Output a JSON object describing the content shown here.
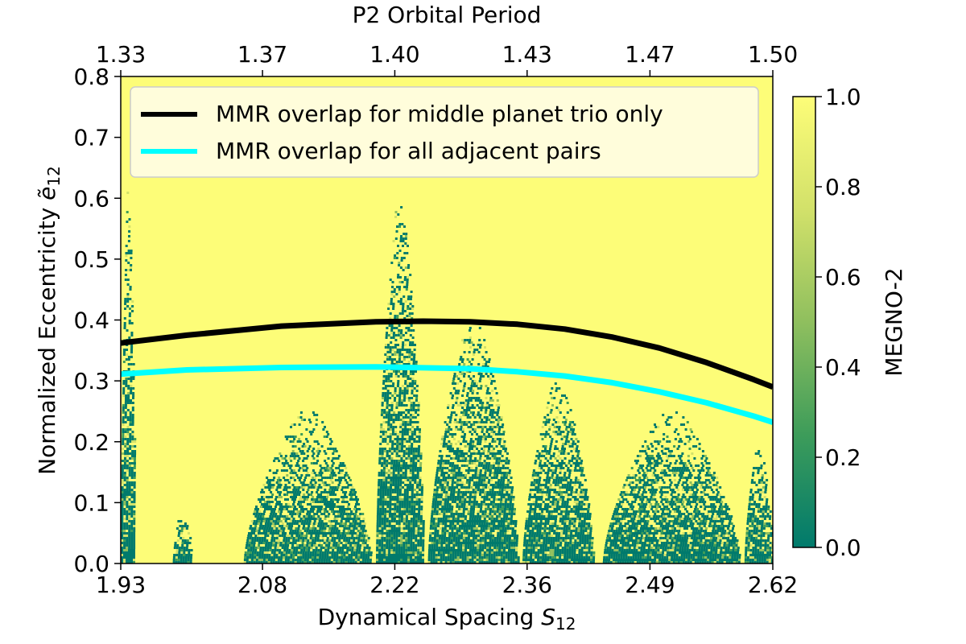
{
  "chart_data": {
    "type": "heatmap",
    "title": "",
    "xlabel": "Dynamical Spacing",
    "xlabel_symbol": "S",
    "xlabel_subscript": "12",
    "ylabel": "Normalized Eccentricity",
    "ylabel_symbol": "ẽ",
    "ylabel_subscript": "12",
    "top_xlabel": "P2 Orbital Period",
    "colorbar_label": "MEGNO-2",
    "xlim": [
      1.93,
      2.62
    ],
    "ylim": [
      0.0,
      0.8
    ],
    "x_ticks": [
      1.93,
      2.08,
      2.22,
      2.36,
      2.49,
      2.62
    ],
    "x_tick_labels": [
      "1.93",
      "2.08",
      "2.22",
      "2.36",
      "2.49",
      "2.62"
    ],
    "y_ticks": [
      0.0,
      0.1,
      0.2,
      0.3,
      0.4,
      0.5,
      0.6,
      0.7,
      0.8
    ],
    "y_tick_labels": [
      "0.0",
      "0.1",
      "0.2",
      "0.3",
      "0.4",
      "0.5",
      "0.6",
      "0.7",
      "0.8"
    ],
    "top_x_ticks": [
      1.93,
      2.08,
      2.22,
      2.36,
      2.49,
      2.62
    ],
    "top_x_tick_labels": [
      "1.33",
      "1.37",
      "1.40",
      "1.43",
      "1.47",
      "1.50"
    ],
    "colorbar_range": [
      0.0,
      1.0
    ],
    "colorbar_ticks": [
      0.0,
      0.2,
      0.4,
      0.6,
      0.8,
      1.0
    ],
    "colorbar_tick_labels": [
      "0.0",
      "0.2",
      "0.4",
      "0.6",
      "0.8",
      "1.0"
    ],
    "colormap": [
      "#007a6c",
      "#3d9c5a",
      "#8fbf5e",
      "#d2e16a",
      "#fdfd78"
    ],
    "background_color": "#fdfd78",
    "stable_regions": [
      {
        "x_start": 1.93,
        "x_end": 1.945,
        "y_max": 0.62
      },
      {
        "x_start": 1.985,
        "x_end": 2.005,
        "y_max": 0.1
      },
      {
        "x_start": 2.06,
        "x_end": 2.195,
        "y_max": 0.25
      },
      {
        "x_start": 2.2,
        "x_end": 2.25,
        "y_max": 0.6
      },
      {
        "x_start": 2.255,
        "x_end": 2.35,
        "y_max": 0.4
      },
      {
        "x_start": 2.355,
        "x_end": 2.43,
        "y_max": 0.3
      },
      {
        "x_start": 2.44,
        "x_end": 2.585,
        "y_max": 0.25
      },
      {
        "x_start": 2.59,
        "x_end": 2.62,
        "y_max": 0.2
      }
    ],
    "series": [
      {
        "name": "MMR overlap for middle planet trio only",
        "color": "#000000",
        "x": [
          1.93,
          2.0,
          2.1,
          2.2,
          2.25,
          2.3,
          2.35,
          2.4,
          2.45,
          2.5,
          2.55,
          2.6,
          2.62
        ],
        "y": [
          0.362,
          0.375,
          0.39,
          0.397,
          0.398,
          0.397,
          0.393,
          0.385,
          0.372,
          0.354,
          0.33,
          0.302,
          0.29
        ]
      },
      {
        "name": "MMR overlap for all adjacent pairs",
        "color": "#00ffff",
        "x": [
          1.93,
          2.0,
          2.1,
          2.2,
          2.3,
          2.35,
          2.4,
          2.45,
          2.5,
          2.55,
          2.6,
          2.62
        ],
        "y": [
          0.311,
          0.318,
          0.322,
          0.323,
          0.32,
          0.315,
          0.308,
          0.297,
          0.282,
          0.264,
          0.242,
          0.232
        ]
      }
    ],
    "legend_position": "upper-left"
  }
}
